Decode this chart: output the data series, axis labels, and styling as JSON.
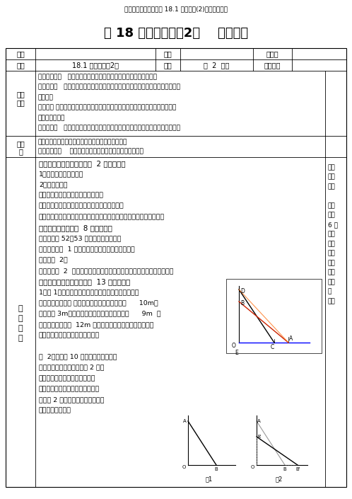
{
  "title_top": "沪科版数学八年级下册 18.1 勾股定理(2)课程教学设计",
  "title_main": "第 18 章勾股定理（2）    教课方案",
  "background_color": "#ffffff",
  "row1": [
    "时间",
    "地址",
    "主备人"
  ],
  "row2_course": "18.1 勾股定理（2）",
  "row2_lesson": "第  2  课时",
  "row2_teacher": "科任教师",
  "obj_lines": [
    "知识与技术：   掌握勾股定理并会用勾股定理解决简单的实质问题。",
    "数学思虑：   经过运用勾股定理解决实质问题，进一步发展学生的逻理及解决问题",
    "的能力。",
    "问题解决 ：经过小组合作，运用勾股定理解决实质问题，体验与别人合作沟通解",
    "决问题的过程。",
    "感情态度：   培育学生的数学思想以及合情推理意识，感悟勾股定理的应用价值。"
  ],
  "key_lines": [
    "要点：用勾股定理进行计算和解决简单的实质问题。",
    "难点：灵巧运    用勾股定理进行计算和解决简单的实质问题"
  ],
  "proc_lines": [
    "一、导入新课、揭露目标（  2 分钟左右）",
    "1、复习勾股定理的内容",
    "2、揭露目标：",
    "⑴掌握直角三角形的三边的数目关系",
    "⑵会用勾股定理进行计算和解决简单的实质问题",
    "⑶培育学生的数学思想以及合情推理意识，感悟勾股定理的应用价值。",
    "二、出示自学纲要（  8 分钟左右）",
    "阅读课本第 52～53 页，解决以下问题：",
    "⑴自学课本例  1 并依据课本的剖析写出解体过程。",
    "⑵自学例  2。",
    "⑶经过对例  2  的学习，你以为如何求直角三角形的斜边上的高才简单？",
    "三、合作研究，解决疑难（  13 分钟左右）",
    "1、例 1．现有一楼房发生火灾，消防队员决定用消防",
    "车上的云梯救人。 如图已知云梯最多只好伸长到      10m，",
    "消防车高 3m，救人时云梯伸至最长，在达成从      9m  高",
    "处救人后，还要从  12m 高处救人，这时消防车至后至少原",
    "来处再向着火的楼房靠近多少米？",
    " ",
    "例  2．一个长 10 米的梯子，斜靠在一",
    "面墙上，梯子的底端离墙角 2 米。",
    "⑴求梯子的顶端距地面有多高？",
    "⑵假如梯子的底端在水平方向上向",
    "外滑动 2 米，那么梯子的顶端沿墙",
    "向下滑动多少米？"
  ],
  "right_col": [
    "议论",
    "增补",
    "记录",
    " ",
    "小组",
    "自学",
    "6 分",
    "钟，",
    "而后",
    "议论",
    "自学",
    "中遇",
    "到的",
    "疑",
    "难。"
  ]
}
